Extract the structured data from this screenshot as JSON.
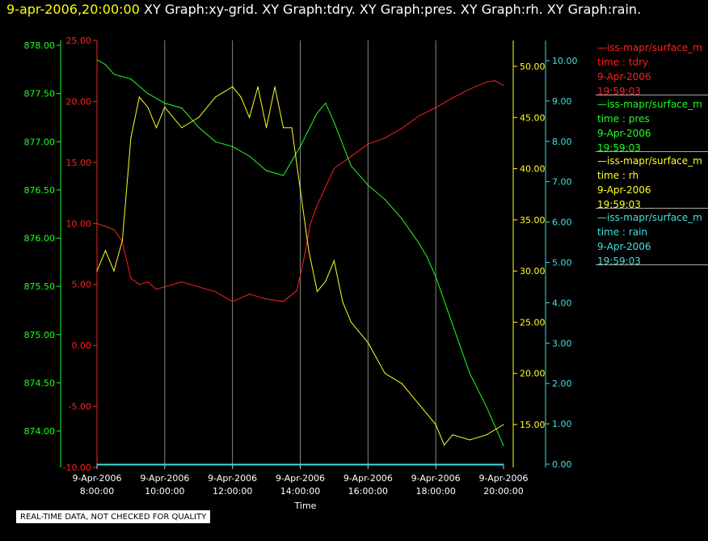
{
  "header": {
    "timestamp": "9-apr-2006,20:00:00",
    "graphs": "XY Graph:xy-grid.  XY Graph:tdry.  XY Graph:pres.  XY Graph:rh.  XY Graph:rain."
  },
  "footer_note": "REAL-TIME DATA, NOT CHECKED FOR QUALITY",
  "colors": {
    "tdry": "#ff2020",
    "pres": "#20ff20",
    "rh": "#ffff20",
    "rain": "#40e0e0",
    "grid": "#888888"
  },
  "legend": [
    {
      "id": "tdry",
      "source": "—iss-mapr/surface_m",
      "field": "time : tdry",
      "date": "9-Apr-2006",
      "time": "19:59:03"
    },
    {
      "id": "pres",
      "source": "—iss-mapr/surface_m",
      "field": "time : pres",
      "date": "9-Apr-2006",
      "time": "19:59:03"
    },
    {
      "id": "rh",
      "source": "—iss-mapr/surface_m",
      "field": "time : rh",
      "date": "9-Apr-2006",
      "time": "19:59:03"
    },
    {
      "id": "rain",
      "source": "—iss-mapr/surface_m",
      "field": "time : rain",
      "date": "9-Apr-2006",
      "time": "19:59:03"
    }
  ],
  "chart_data": {
    "type": "line",
    "xlabel": "Time",
    "x_tick_dates": [
      "9-Apr-2006",
      "9-Apr-2006",
      "9-Apr-2006",
      "9-Apr-2006",
      "9-Apr-2006",
      "9-Apr-2006",
      "9-Apr-2006"
    ],
    "x_tick_times": [
      "8:00:00",
      "10:00:00",
      "12:00:00",
      "14:00:00",
      "16:00:00",
      "18:00:00",
      "20:00:00"
    ],
    "xlim_hours": [
      8,
      20
    ],
    "grid": true,
    "axes": {
      "pres": {
        "ylim": [
          873.7,
          878.1
        ],
        "ticks": [
          "874.00",
          "874.50",
          "875.00",
          "875.50",
          "876.00",
          "876.50",
          "877.00",
          "877.50",
          "878.00"
        ]
      },
      "tdry": {
        "ylim": [
          -10,
          25
        ],
        "ticks": [
          "-10.00",
          "-5.00",
          "0.00",
          "5.00",
          "10.00",
          "15.00",
          "20.00",
          "25.00"
        ]
      },
      "rh": {
        "ylim": [
          12,
          52
        ],
        "ticks": [
          "15.00",
          "20.00",
          "25.00",
          "30.00",
          "35.00",
          "40.00",
          "45.00",
          "50.00"
        ]
      },
      "rain": {
        "ylim": [
          0,
          10.5
        ],
        "ticks": [
          "0.00",
          "1.00",
          "2.00",
          "3.00",
          "4.00",
          "5.00",
          "6.00",
          "7.00",
          "8.00",
          "9.00",
          "10.00"
        ]
      }
    },
    "series": [
      {
        "id": "tdry",
        "axis": "tdry",
        "x": [
          8.0,
          8.5,
          8.75,
          9.0,
          9.25,
          9.5,
          9.75,
          10.0,
          10.5,
          11.0,
          11.5,
          12.0,
          12.5,
          13.0,
          13.5,
          13.9,
          14.1,
          14.3,
          14.5,
          14.75,
          15.0,
          15.5,
          16.0,
          16.5,
          17.0,
          17.5,
          18.0,
          18.5,
          19.0,
          19.5,
          19.75,
          20.0
        ],
        "values": [
          10,
          9.5,
          8.5,
          5.5,
          5.0,
          5.2,
          4.6,
          4.8,
          5.2,
          4.8,
          4.4,
          3.6,
          4.2,
          3.8,
          3.6,
          4.5,
          7.0,
          10.0,
          11.5,
          13.0,
          14.5,
          15.5,
          16.5,
          17.0,
          17.8,
          18.8,
          19.5,
          20.3,
          21.0,
          21.6,
          21.7,
          21.3
        ]
      },
      {
        "id": "pres",
        "axis": "pres",
        "x": [
          8.0,
          8.25,
          8.5,
          9.0,
          9.5,
          10.0,
          10.5,
          11.0,
          11.5,
          12.0,
          12.5,
          13.0,
          13.5,
          14.0,
          14.5,
          14.75,
          15.0,
          15.5,
          16.0,
          16.5,
          17.0,
          17.5,
          17.75,
          18.0,
          18.5,
          19.0,
          19.5,
          20.0
        ],
        "values": [
          877.85,
          877.8,
          877.7,
          877.65,
          877.5,
          877.4,
          877.35,
          877.15,
          877.0,
          876.95,
          876.85,
          876.7,
          876.65,
          876.95,
          877.3,
          877.4,
          877.2,
          876.75,
          876.55,
          876.4,
          876.2,
          875.95,
          875.8,
          875.6,
          875.1,
          874.6,
          874.25,
          873.85
        ]
      },
      {
        "id": "rh",
        "axis": "rh",
        "x": [
          8.0,
          8.25,
          8.5,
          8.75,
          9.0,
          9.25,
          9.5,
          9.75,
          10.0,
          10.5,
          11.0,
          11.5,
          12.0,
          12.25,
          12.5,
          12.75,
          13.0,
          13.25,
          13.5,
          13.75,
          14.0,
          14.25,
          14.5,
          14.75,
          15.0,
          15.25,
          15.5,
          16.0,
          16.5,
          17.0,
          17.5,
          18.0,
          18.25,
          18.5,
          19.0,
          19.5,
          20.0
        ],
        "values": [
          30,
          32,
          30,
          33,
          43,
          47,
          46,
          44,
          46,
          44,
          45,
          47,
          48,
          47,
          45,
          48,
          44,
          48,
          44,
          44,
          38,
          32,
          28,
          29,
          31,
          27,
          25,
          23,
          20,
          19,
          17,
          15,
          13,
          14,
          13.5,
          14,
          15
        ]
      },
      {
        "id": "rain",
        "axis": "rain",
        "x": [
          8.0,
          20.0
        ],
        "values": [
          0,
          0
        ]
      }
    ]
  }
}
